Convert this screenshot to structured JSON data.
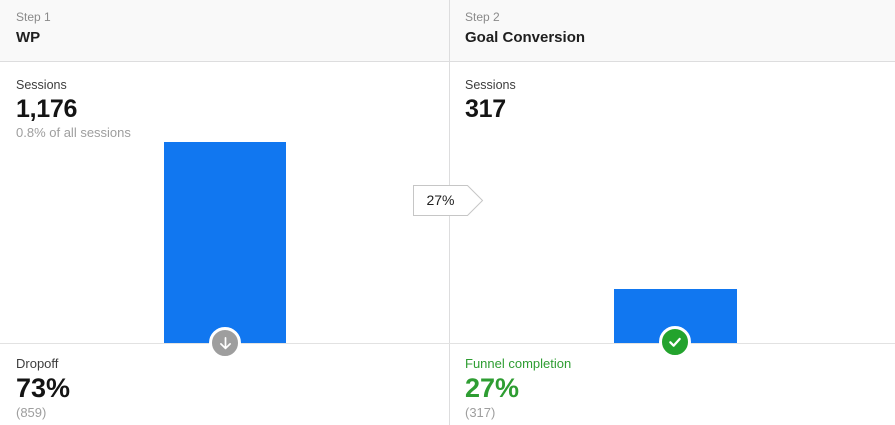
{
  "chart_data": {
    "type": "funnel",
    "categories": [
      "WP",
      "Goal Conversion"
    ],
    "values": [
      1176,
      317
    ],
    "transition_label": "27%",
    "steps": [
      {
        "step_label": "Step 1",
        "name": "WP",
        "sessions": 1176,
        "percent_of_all_sessions": "0.8%",
        "dropoff_percent": "73%",
        "dropoff_count": 859
      },
      {
        "step_label": "Step 2",
        "name": "Goal Conversion",
        "sessions": 317,
        "funnel_completion_percent": "27%",
        "funnel_completion_count": 317
      }
    ]
  },
  "colors": {
    "bar_blue": "#1177F0",
    "green_text": "#2E9D32",
    "circle_green": "#23A32D",
    "circle_gray": "#9E9E9E",
    "divider": "#DDDDDE",
    "baseline": "#E2E2E2",
    "header_bg": "#F9F9F9"
  },
  "step1": {
    "step_label": "Step 1",
    "title": "WP",
    "sessions_label": "Sessions",
    "sessions_value": "1,176",
    "sessions_subtext": "0.8% of all sessions",
    "bottom_label": "Dropoff",
    "bottom_percent": "73%",
    "bottom_count": "(859)"
  },
  "step2": {
    "step_label": "Step 2",
    "title": "Goal Conversion",
    "sessions_label": "Sessions",
    "sessions_value": "317",
    "bottom_label": "Funnel completion",
    "bottom_percent": "27%",
    "bottom_count": "(317)"
  },
  "connector": {
    "label": "27%"
  }
}
